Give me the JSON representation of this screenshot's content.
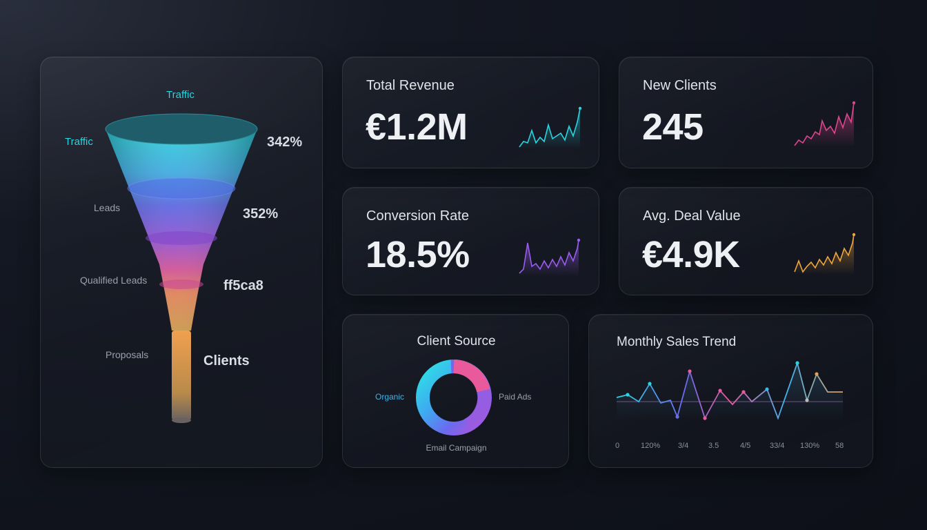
{
  "funnel": {
    "top_caption": "Traffic",
    "stages": [
      {
        "label": "Traffic",
        "value": "342%",
        "color": "#2ad4e0"
      },
      {
        "label": "Leads",
        "value": "352%",
        "color": "#5f6bf0"
      },
      {
        "label": "Qualified Leads",
        "value": "ff5ca8",
        "color": "#b456d8"
      },
      {
        "label": "Proposals",
        "value": "Clients",
        "color": "#ff5ca8"
      }
    ]
  },
  "kpis": {
    "revenue": {
      "title": "Total Revenue",
      "value": "€1.2M",
      "color": "#2ad4e0"
    },
    "clients": {
      "title": "New Clients",
      "value": "245",
      "color": "#e0458f"
    },
    "conversion": {
      "title": "Conversion Rate",
      "value": "18.5%",
      "color": "#9b5cf0"
    },
    "deal": {
      "title": "Avg. Deal Value",
      "value": "€4.9K",
      "color": "#f0a73c"
    }
  },
  "client_source": {
    "title": "Client Source",
    "labels": {
      "organic": "Organic",
      "paid": "Paid Ads",
      "email": "Email Campaign"
    }
  },
  "sales_trend": {
    "title": "Monthly Sales Trend",
    "ticks": [
      "0",
      "120%",
      "3/4",
      "3.5",
      "4/5",
      "33/4",
      "130%",
      "58"
    ]
  }
}
